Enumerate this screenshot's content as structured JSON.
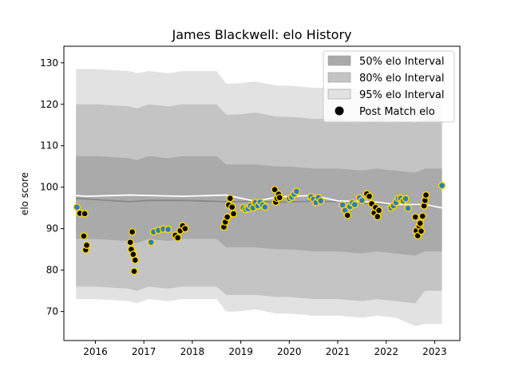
{
  "chart_data": {
    "type": "scatter",
    "title": "James Blackwell: elo History",
    "xlabel": "",
    "ylabel": "elo score",
    "xlim": [
      2015.35,
      2023.52
    ],
    "ylim": [
      63,
      134
    ],
    "x_ticks": [
      2016,
      2017,
      2018,
      2019,
      2020,
      2021,
      2022,
      2023
    ],
    "x_tick_labels": [
      "2016",
      "2017",
      "2018",
      "2019",
      "2020",
      "2021",
      "2022",
      "2023"
    ],
    "y_ticks": [
      70,
      80,
      90,
      100,
      110,
      120,
      130
    ],
    "y_tick_labels": [
      "70",
      "80",
      "90",
      "100",
      "110",
      "120",
      "130"
    ],
    "grid": false,
    "legend_placement": "top-right",
    "legend": [
      {
        "label": "50% elo Interval",
        "color": "#aaaaaa"
      },
      {
        "label": "80% elo Interval",
        "color": "#c4c4c4"
      },
      {
        "label": "95% elo Interval",
        "color": "#e2e2e2"
      },
      {
        "label": "Post Match elo",
        "color": "#000000"
      }
    ],
    "colors": {
      "band_50": "#aaaaaa",
      "band_80": "#c4c4c4",
      "band_95": "#e2e2e2",
      "pre_match_line": "#888888",
      "post_match_line": "#ffffff",
      "marker_face": "#000000",
      "marker_edge": "#ffd700",
      "marker_face_alt": "#2c7fb8"
    },
    "bands": {
      "x": [
        2015.6,
        2016.0,
        2016.7,
        2016.85,
        2017.1,
        2017.5,
        2017.8,
        2018.5,
        2018.7,
        2018.9,
        2019.3,
        2019.75,
        2020.0,
        2020.5,
        2021.0,
        2021.5,
        2021.8,
        2022.2,
        2022.6,
        2022.8,
        2023.15
      ],
      "p95_hi": [
        128.5,
        128.5,
        128.0,
        127.5,
        128.0,
        127.5,
        128.0,
        128.0,
        125.0,
        125.0,
        125.5,
        124.5,
        124.5,
        124.0,
        124.0,
        123.5,
        124.0,
        123.5,
        123.0,
        124.0,
        124.0
      ],
      "p80_hi": [
        120.0,
        120.0,
        119.5,
        119.0,
        120.0,
        119.5,
        120.0,
        120.0,
        117.5,
        117.5,
        118.0,
        117.0,
        117.0,
        116.5,
        116.5,
        116.0,
        116.5,
        116.0,
        115.5,
        116.5,
        116.5
      ],
      "p50_hi": [
        107.5,
        107.5,
        107.0,
        106.5,
        107.5,
        107.0,
        107.5,
        107.5,
        105.5,
        105.5,
        105.5,
        105.0,
        105.0,
        104.5,
        104.5,
        104.0,
        104.5,
        104.0,
        103.5,
        104.5,
        104.5
      ],
      "p50_lo": [
        87.5,
        87.5,
        87.0,
        86.5,
        87.5,
        87.0,
        87.5,
        87.5,
        85.5,
        85.5,
        85.5,
        85.0,
        85.0,
        84.5,
        84.5,
        84.0,
        84.5,
        84.0,
        83.5,
        84.5,
        84.5
      ],
      "p80_lo": [
        76.0,
        76.0,
        75.5,
        75.0,
        76.0,
        75.5,
        76.0,
        76.0,
        74.0,
        74.0,
        74.0,
        73.5,
        73.5,
        73.0,
        73.0,
        72.5,
        73.0,
        72.5,
        72.0,
        75.0,
        75.0
      ],
      "p95_lo": [
        73.0,
        73.0,
        72.5,
        72.0,
        73.0,
        72.5,
        73.0,
        73.0,
        70.0,
        70.0,
        70.5,
        69.5,
        69.5,
        69.0,
        69.0,
        68.5,
        69.0,
        68.5,
        66.5,
        67.0,
        67.0
      ]
    },
    "pre_match_line": {
      "x": [
        2015.6,
        2016.7,
        2017.1,
        2017.8,
        2018.7,
        2019.3,
        2019.75,
        2020.5,
        2021.0,
        2021.8,
        2022.2,
        2022.8,
        2023.15
      ],
      "y": [
        97.3,
        96.5,
        96.8,
        96.8,
        96.5,
        96.6,
        96.4,
        96.6,
        96.5,
        96.0,
        95.8,
        95.6,
        95.0
      ]
    },
    "post_match_line": {
      "x": [
        2015.6,
        2015.8,
        2016.7,
        2017.1,
        2017.8,
        2018.7,
        2019.3,
        2019.75,
        2020.0,
        2020.5,
        2021.0,
        2021.8,
        2022.2,
        2022.8,
        2023.15
      ],
      "y": [
        98.0,
        97.8,
        98.1,
        98.0,
        97.8,
        98.1,
        96.6,
        97.6,
        97.8,
        98.0,
        96.7,
        96.4,
        95.8,
        95.8,
        95.0
      ]
    },
    "points": {
      "x": [
        2015.62,
        2015.68,
        2015.76,
        2015.78,
        2015.8,
        2015.82,
        2016.72,
        2016.74,
        2016.76,
        2016.78,
        2016.8,
        2016.82,
        2017.15,
        2017.2,
        2017.3,
        2017.4,
        2017.5,
        2017.65,
        2017.7,
        2017.75,
        2017.8,
        2017.85,
        2018.65,
        2018.68,
        2018.72,
        2018.75,
        2018.78,
        2018.82,
        2018.85,
        2019.05,
        2019.1,
        2019.15,
        2019.2,
        2019.25,
        2019.3,
        2019.35,
        2019.4,
        2019.45,
        2019.5,
        2019.7,
        2019.72,
        2019.75,
        2019.78,
        2019.8,
        2020.0,
        2020.05,
        2020.1,
        2020.15,
        2020.45,
        2020.5,
        2020.55,
        2020.6,
        2020.65,
        2021.1,
        2021.15,
        2021.2,
        2021.25,
        2021.3,
        2021.35,
        2021.45,
        2021.5,
        2021.6,
        2021.65,
        2021.7,
        2021.75,
        2021.78,
        2021.82,
        2021.85,
        2022.1,
        2022.15,
        2022.2,
        2022.25,
        2022.3,
        2022.35,
        2022.4,
        2022.45,
        2022.6,
        2022.62,
        2022.65,
        2022.68,
        2022.7,
        2022.72,
        2022.75,
        2022.78,
        2022.8,
        2022.82,
        2023.15
      ],
      "y": [
        95.2,
        93.7,
        88.2,
        93.6,
        84.9,
        86.0,
        86.7,
        85.0,
        89.2,
        83.8,
        79.7,
        82.4,
        86.7,
        89.2,
        89.6,
        89.9,
        89.8,
        88.4,
        87.8,
        89.5,
        90.7,
        90.0,
        90.4,
        91.6,
        92.8,
        95.7,
        97.3,
        95.2,
        93.6,
        95.0,
        94.6,
        94.8,
        95.5,
        95.0,
        96.3,
        95.5,
        96.4,
        95.7,
        95.2,
        99.4,
        96.4,
        97.3,
        98.3,
        97.5,
        97.2,
        97.6,
        98.3,
        99.0,
        97.7,
        97.1,
        96.3,
        97.5,
        96.7,
        95.7,
        94.4,
        93.2,
        95.3,
        96.2,
        95.8,
        97.4,
        96.8,
        98.4,
        97.8,
        96.0,
        93.8,
        95.1,
        92.9,
        94.4,
        95.0,
        95.5,
        96.3,
        97.3,
        97.3,
        96.7,
        97.2,
        94.9,
        92.8,
        89.5,
        88.3,
        90.6,
        91.3,
        89.4,
        93.0,
        95.5,
        96.8,
        98.1,
        100.4
      ],
      "alt": [
        1,
        0,
        0,
        0,
        0,
        0,
        0,
        0,
        0,
        0,
        0,
        0,
        1,
        1,
        1,
        1,
        1,
        0,
        0,
        0,
        0,
        0,
        0,
        0,
        0,
        0,
        0,
        0,
        0,
        1,
        1,
        1,
        1,
        1,
        1,
        1,
        1,
        1,
        1,
        0,
        0,
        0,
        0,
        0,
        1,
        1,
        1,
        1,
        1,
        1,
        1,
        1,
        1,
        1,
        1,
        0,
        1,
        1,
        1,
        1,
        1,
        0,
        0,
        0,
        0,
        0,
        0,
        0,
        1,
        1,
        1,
        1,
        1,
        1,
        1,
        1,
        0,
        0,
        0,
        0,
        0,
        0,
        0,
        0,
        0,
        0,
        1
      ]
    }
  }
}
